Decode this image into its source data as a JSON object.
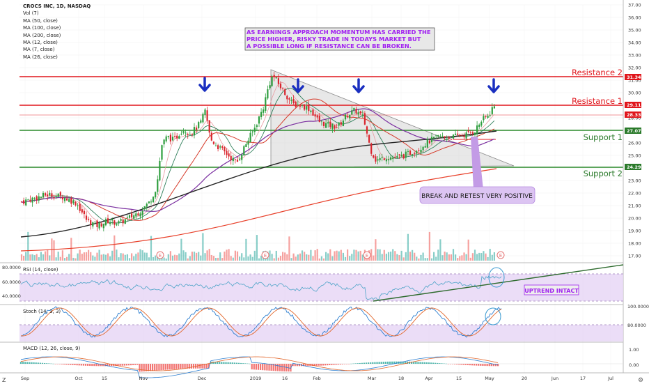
{
  "legend": {
    "symbol": "CROCS INC, 1D, NASDAQ",
    "items": [
      "Vol (7)",
      "MA (50, close)",
      "MA (100, close)",
      "MA (200, close)",
      "MA (12, close)",
      "MA (7, close)",
      "MA (26, close)"
    ]
  },
  "annotation_main": {
    "line1": "AS EARNINGS APPROACH MOMENTUM HAS CARRIED THE",
    "line2": "PRICE HIGHER, RISKY TRADE IN TODAYS MARKET BUT",
    "line3": "A POSSIBLE LONG IF RESISTANCE CAN BE BROKEN.",
    "text_color": "#a020f0",
    "bg_color": "#e8e8e8"
  },
  "levels": {
    "resistance2": {
      "label": "Resistance 2",
      "price": "31.34",
      "value": 31.34
    },
    "resistance1": {
      "label": "Resistance 1",
      "price": "29.11",
      "value": 29.11
    },
    "support1": {
      "label": "Support 1",
      "price": "27.07",
      "value": 27.07
    },
    "support2": {
      "label": "Support 2",
      "price": "24.29",
      "value": 24.29
    },
    "last": {
      "price": "28.33",
      "value": 28.33
    }
  },
  "callout_retest": "BREAK AND RETEST VERY POSITIVE",
  "callout_uptrend": "UPTREND INTACT",
  "price_axis": [
    "37.00",
    "36.00",
    "35.00",
    "34.00",
    "33.00",
    "32.00",
    "31.00",
    "30.00",
    "29.00",
    "28.00",
    "27.00",
    "26.00",
    "25.00",
    "24.00",
    "23.00",
    "22.00",
    "21.00",
    "20.00",
    "19.00",
    "18.00",
    "17.00"
  ],
  "time_axis": [
    "Sep",
    "Oct",
    "15",
    "Nov",
    "Dec",
    "2019",
    "16",
    "Feb",
    "Mar",
    "18",
    "Apr",
    "15",
    "May",
    "20",
    "Jun",
    "17",
    "Jul"
  ],
  "earnings_marker": "E",
  "panes": {
    "rsi": {
      "label": "RSI (14, close)",
      "ticks": [
        "80.0000",
        "60.0000",
        "40.0000"
      ]
    },
    "stoch": {
      "label": "Stoch (14, 3, 3)",
      "ticks": [
        "100.0000",
        "80.0000"
      ]
    },
    "macd": {
      "label": "MACD (12, 26, close, 9)",
      "ticks": [
        "1.00",
        "0.00"
      ]
    }
  },
  "colors": {
    "up": "#26a69a",
    "down": "#ef5350",
    "candle_up": "#2e9e3e",
    "candle_down": "#d9262e",
    "resistance": "#e0151b",
    "support": "#2a8a2a",
    "arrow": "#1a2fc0",
    "ma50": "#222222",
    "ma100": "#e8402a",
    "ma200": "#7b2fa0",
    "band": "#e6d5f5"
  },
  "icons": {
    "settings": "gear-icon",
    "zoom": "Z"
  }
}
